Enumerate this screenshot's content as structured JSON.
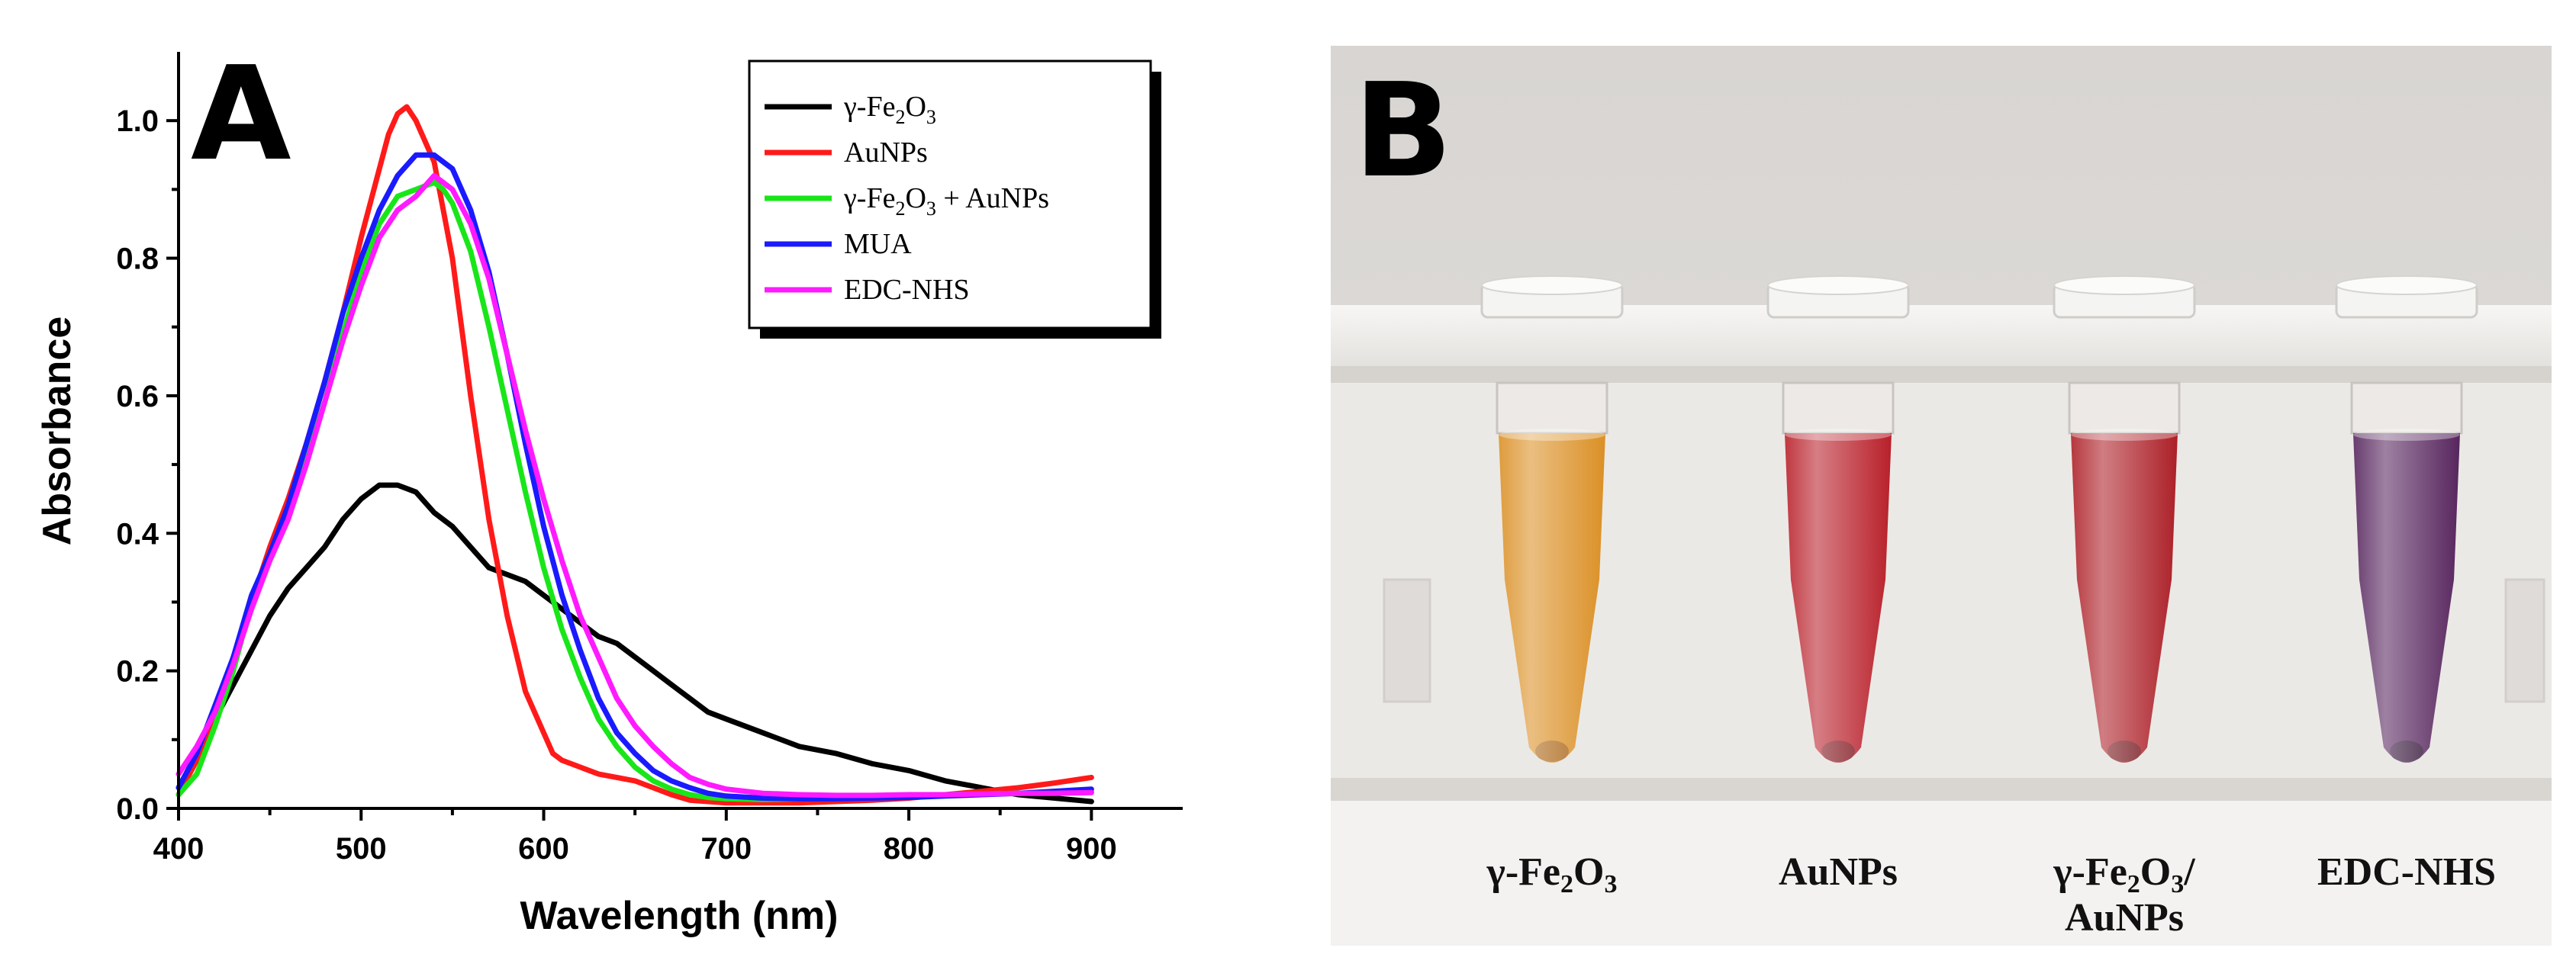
{
  "chart_data": {
    "type": "line",
    "panel_label": "A",
    "xlabel": "Wavelength (nm)",
    "ylabel": "Absorbance",
    "xlim": [
      400,
      950
    ],
    "ylim": [
      0,
      1.1
    ],
    "x_ticks": [
      400,
      500,
      600,
      700,
      800,
      900
    ],
    "y_ticks": [
      0.0,
      0.2,
      0.4,
      0.6,
      0.8,
      1.0
    ],
    "y_tick_labels": [
      "0.0",
      "0.2",
      "0.4",
      "0.6",
      "0.8",
      "1.0"
    ],
    "legend_position": "top-right",
    "series": [
      {
        "name": "γ-Fe2O3",
        "label_main": "γ-Fe",
        "label_parts": [
          "γ-Fe",
          "2",
          "O",
          "3",
          ""
        ],
        "color": "#000000",
        "x": [
          400,
          410,
          420,
          430,
          440,
          450,
          460,
          470,
          480,
          490,
          500,
          510,
          520,
          530,
          540,
          550,
          560,
          570,
          580,
          590,
          600,
          610,
          620,
          630,
          640,
          650,
          660,
          670,
          680,
          690,
          700,
          720,
          740,
          760,
          780,
          800,
          820,
          840,
          860,
          880,
          900
        ],
        "y": [
          0.03,
          0.08,
          0.13,
          0.18,
          0.23,
          0.28,
          0.32,
          0.35,
          0.38,
          0.42,
          0.45,
          0.47,
          0.47,
          0.46,
          0.43,
          0.41,
          0.38,
          0.35,
          0.34,
          0.33,
          0.31,
          0.29,
          0.27,
          0.25,
          0.24,
          0.22,
          0.2,
          0.18,
          0.16,
          0.14,
          0.13,
          0.11,
          0.09,
          0.08,
          0.065,
          0.055,
          0.04,
          0.03,
          0.02,
          0.015,
          0.01
        ]
      },
      {
        "name": "AuNPs",
        "label_main": "AuNPs",
        "label_parts": [
          "AuNPs"
        ],
        "color": "#ff1a1a",
        "x": [
          400,
          410,
          420,
          430,
          440,
          450,
          460,
          470,
          480,
          490,
          500,
          510,
          515,
          520,
          525,
          530,
          540,
          550,
          560,
          570,
          580,
          590,
          600,
          605,
          610,
          620,
          630,
          640,
          650,
          660,
          670,
          680,
          690,
          700,
          720,
          740,
          760,
          780,
          800,
          820,
          840,
          860,
          880,
          900
        ],
        "y": [
          0.02,
          0.07,
          0.14,
          0.22,
          0.3,
          0.38,
          0.45,
          0.53,
          0.62,
          0.72,
          0.83,
          0.93,
          0.98,
          1.01,
          1.02,
          1.0,
          0.94,
          0.8,
          0.6,
          0.42,
          0.28,
          0.17,
          0.11,
          0.08,
          0.07,
          0.06,
          0.05,
          0.045,
          0.04,
          0.03,
          0.02,
          0.012,
          0.01,
          0.008,
          0.008,
          0.008,
          0.01,
          0.012,
          0.015,
          0.02,
          0.025,
          0.03,
          0.037,
          0.045
        ]
      },
      {
        "name": "γ-Fe2O3 + AuNPs",
        "label_main": "γ-Fe",
        "label_parts": [
          " γ-Fe",
          "2",
          "O",
          "3",
          " + AuNPs"
        ],
        "color": "#19e619",
        "x": [
          400,
          410,
          420,
          430,
          440,
          450,
          460,
          470,
          480,
          490,
          500,
          510,
          520,
          530,
          540,
          545,
          550,
          560,
          570,
          580,
          590,
          600,
          610,
          620,
          630,
          640,
          650,
          660,
          670,
          680,
          690,
          700,
          720,
          740,
          760,
          780,
          800,
          820,
          840,
          860,
          880,
          900
        ],
        "y": [
          0.02,
          0.05,
          0.12,
          0.2,
          0.3,
          0.37,
          0.43,
          0.51,
          0.59,
          0.69,
          0.78,
          0.85,
          0.89,
          0.9,
          0.91,
          0.9,
          0.88,
          0.81,
          0.7,
          0.58,
          0.46,
          0.35,
          0.26,
          0.19,
          0.13,
          0.09,
          0.06,
          0.04,
          0.028,
          0.02,
          0.016,
          0.014,
          0.013,
          0.014,
          0.015,
          0.016,
          0.018,
          0.02,
          0.021,
          0.022,
          0.023,
          0.024
        ]
      },
      {
        "name": "MUA",
        "label_main": "MUA",
        "label_parts": [
          "MUA"
        ],
        "color": "#1a1aff",
        "x": [
          400,
          410,
          420,
          430,
          440,
          450,
          460,
          470,
          480,
          490,
          500,
          510,
          520,
          530,
          540,
          550,
          560,
          570,
          580,
          590,
          600,
          610,
          620,
          630,
          640,
          650,
          660,
          670,
          680,
          690,
          700,
          720,
          740,
          760,
          780,
          800,
          820,
          840,
          860,
          880,
          900
        ],
        "y": [
          0.03,
          0.08,
          0.15,
          0.22,
          0.31,
          0.37,
          0.44,
          0.53,
          0.62,
          0.72,
          0.8,
          0.87,
          0.92,
          0.95,
          0.95,
          0.93,
          0.87,
          0.78,
          0.66,
          0.53,
          0.41,
          0.31,
          0.23,
          0.16,
          0.11,
          0.08,
          0.055,
          0.04,
          0.03,
          0.022,
          0.018,
          0.015,
          0.014,
          0.014,
          0.015,
          0.016,
          0.018,
          0.02,
          0.022,
          0.025,
          0.028
        ]
      },
      {
        "name": "EDC-NHS",
        "label_main": "EDC-NHS",
        "label_parts": [
          "EDC-NHS"
        ],
        "color": "#ff1aff",
        "x": [
          400,
          410,
          420,
          430,
          440,
          450,
          460,
          470,
          480,
          490,
          500,
          510,
          520,
          530,
          540,
          550,
          560,
          570,
          580,
          590,
          600,
          610,
          620,
          630,
          640,
          650,
          660,
          670,
          680,
          690,
          700,
          720,
          740,
          760,
          780,
          800,
          820,
          840,
          860,
          880,
          900
        ],
        "y": [
          0.05,
          0.09,
          0.14,
          0.21,
          0.29,
          0.36,
          0.42,
          0.5,
          0.59,
          0.68,
          0.76,
          0.83,
          0.87,
          0.89,
          0.92,
          0.9,
          0.85,
          0.77,
          0.66,
          0.55,
          0.45,
          0.36,
          0.28,
          0.22,
          0.16,
          0.12,
          0.09,
          0.065,
          0.045,
          0.035,
          0.028,
          0.022,
          0.02,
          0.019,
          0.019,
          0.02,
          0.02,
          0.021,
          0.022,
          0.022,
          0.023
        ]
      }
    ]
  },
  "photo": {
    "panel_label": "B",
    "tubes": [
      {
        "label_parts": [
          "γ-Fe",
          "2",
          "O",
          "3",
          ""
        ],
        "second_line": "",
        "liquid_color": "#d98a1a",
        "liquid_dark": "#a85f0c"
      },
      {
        "label_parts": [
          "AuNPs"
        ],
        "second_line": "",
        "liquid_color": "#b5141f",
        "liquid_dark": "#7a0a12"
      },
      {
        "label_parts": [
          "γ-Fe",
          "2",
          "O",
          "3",
          "/"
        ],
        "second_line": "AuNPs",
        "liquid_color": "#a8141c",
        "liquid_dark": "#6e0a10"
      },
      {
        "label_parts": [
          "EDC-NHS"
        ],
        "second_line": "",
        "liquid_color": "#4e1a55",
        "liquid_dark": "#2a0a30"
      }
    ],
    "colors": {
      "wall": "#d9d6d3",
      "rack": "#f1efec",
      "rack_shadow": "#c9c6c2"
    }
  }
}
